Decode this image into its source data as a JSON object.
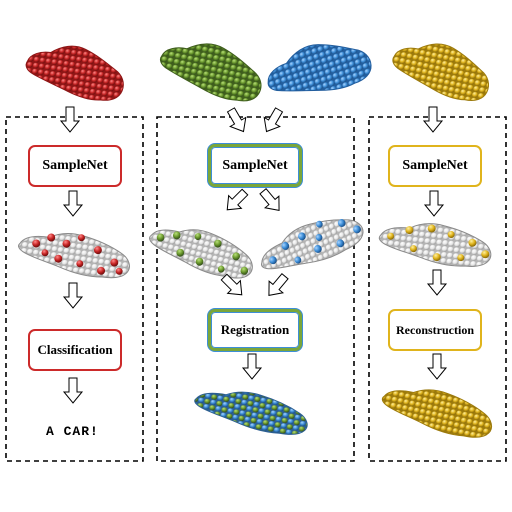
{
  "columns": [
    {
      "id": "classification",
      "module_1": "SampleNet",
      "module_2": "Classification",
      "result": "A CAR!",
      "color": "#cc2a2a"
    },
    {
      "id": "registration",
      "module_1": "SampleNet",
      "module_2": "Registration",
      "colors": [
        "#6c9a2e",
        "#3d8ed8"
      ]
    },
    {
      "id": "reconstruction",
      "module_1": "SampleNet",
      "module_2": "Reconstruction",
      "color": "#e0b41c"
    }
  ],
  "point_color_sampled": "#f2f2f2",
  "icons": [
    "car-point-cloud-icon",
    "down-arrow-icon"
  ]
}
